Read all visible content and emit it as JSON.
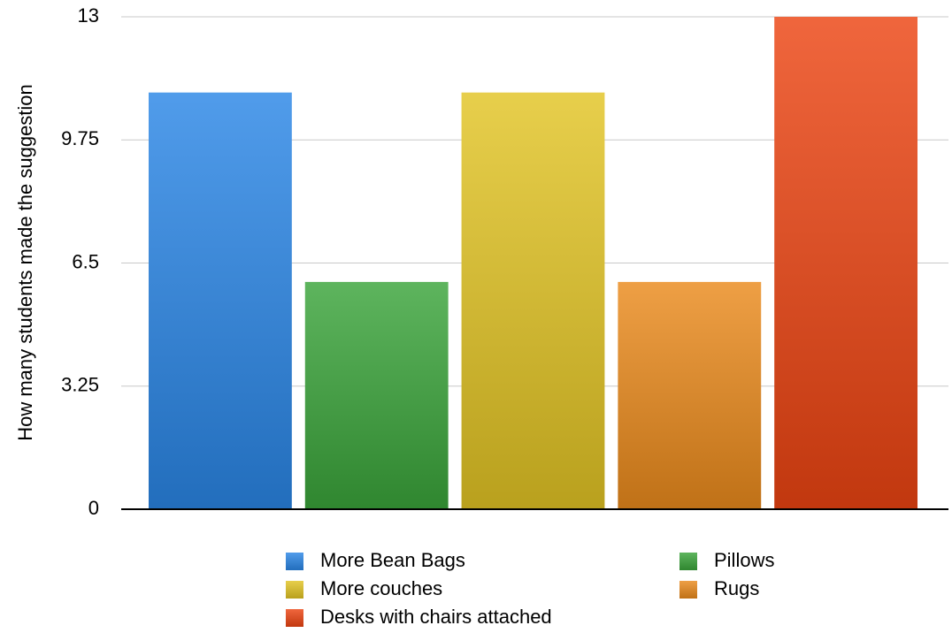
{
  "chart_data": {
    "type": "bar",
    "y_label": "How many students made the suggestion",
    "categories": [
      null
    ],
    "series": [
      {
        "name": "More Bean Bags",
        "color": "#2a86e6",
        "values": [
          11
        ]
      },
      {
        "name": "Pillows",
        "color": "#3aa43a",
        "values": [
          6
        ]
      },
      {
        "name": "More couches",
        "color": "#e2c424",
        "values": [
          11
        ]
      },
      {
        "name": "Rugs",
        "color": "#ea8a1c",
        "values": [
          6
        ]
      },
      {
        "name": "Desks with chairs attached",
        "color": "#ec4412",
        "values": [
          13
        ]
      }
    ],
    "ylim": [
      0,
      13
    ],
    "yticks": [
      0,
      3.25,
      6.5,
      9.75,
      13
    ],
    "grid": true,
    "legend": "bottom"
  }
}
